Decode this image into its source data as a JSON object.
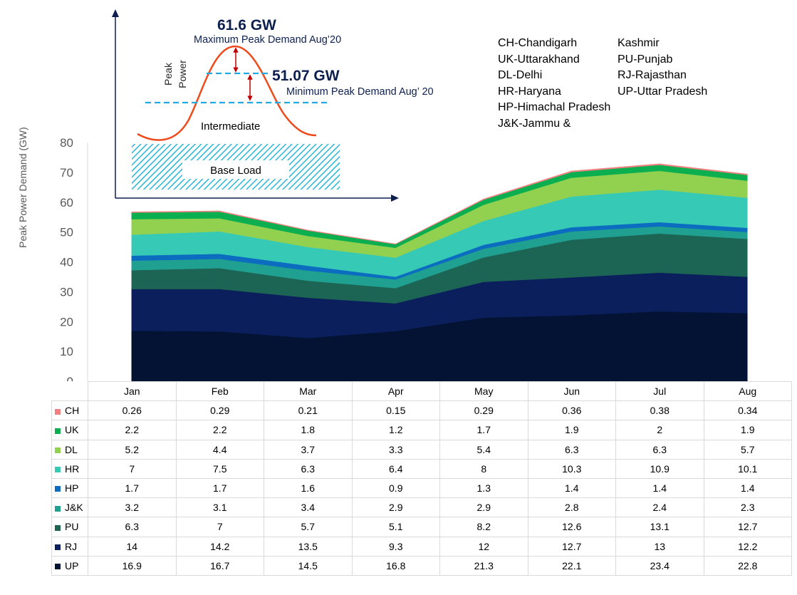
{
  "chart_data": {
    "type": "area",
    "stacked": true,
    "ylabel": "Peak Power Demand (GW)",
    "ylim": [
      0,
      80
    ],
    "yticks": [
      0,
      10,
      20,
      30,
      40,
      50,
      60,
      70,
      80
    ],
    "categories": [
      "Jan",
      "Feb",
      "Mar",
      "Apr",
      "May",
      "Jun",
      "Jul",
      "Aug"
    ],
    "series": [
      {
        "name": "UP",
        "color": "#041233",
        "values": [
          16.9,
          16.7,
          14.5,
          16.8,
          21.3,
          22.1,
          23.4,
          22.8
        ]
      },
      {
        "name": "RJ",
        "color": "#0a1f5c",
        "values": [
          14,
          14.2,
          13.5,
          9.3,
          12,
          12.7,
          13,
          12.2
        ]
      },
      {
        "name": "PU",
        "color": "#1c6454",
        "values": [
          6.3,
          7,
          5.7,
          5.1,
          8.2,
          12.6,
          13.1,
          12.7
        ]
      },
      {
        "name": "J&K",
        "color": "#20a090",
        "values": [
          3.2,
          3.1,
          3.4,
          2.9,
          2.9,
          2.8,
          2.4,
          2.3
        ]
      },
      {
        "name": "HP",
        "color": "#0b6cc0",
        "values": [
          1.7,
          1.7,
          1.6,
          0.9,
          1.3,
          1.4,
          1.4,
          1.4
        ]
      },
      {
        "name": "HR",
        "color": "#36c9b6",
        "values": [
          7,
          7.5,
          6.3,
          6.4,
          8,
          10.3,
          10.9,
          10.1
        ]
      },
      {
        "name": "DL",
        "color": "#92d050",
        "values": [
          5.2,
          4.4,
          3.7,
          3.3,
          5.4,
          6.3,
          6.3,
          5.7
        ]
      },
      {
        "name": "UK",
        "color": "#0caf50",
        "values": [
          2.2,
          2.2,
          1.8,
          1.2,
          1.7,
          1.9,
          2,
          1.9
        ]
      },
      {
        "name": "CH",
        "color": "#f08080",
        "values": [
          0.26,
          0.29,
          0.21,
          0.15,
          0.29,
          0.36,
          0.38,
          0.34
        ]
      }
    ],
    "table_row_order": [
      "CH",
      "UK",
      "DL",
      "HR",
      "HP",
      "J&K",
      "PU",
      "RJ",
      "UP"
    ]
  },
  "inset": {
    "max_value": "61.6 GW",
    "max_label": "Maximum Peak Demand Aug’20",
    "min_value": "51.07 GW",
    "min_label": "Minimum Peak Demand Aug’ 20",
    "axis_label_line1": "Peak",
    "axis_label_line2": "Power",
    "intermediate_label": "Intermediate",
    "base_label": "Base Load",
    "line_color": "#ee4b1c",
    "dash_color": "#21a9e1",
    "arrow_color": "#c00000",
    "axis_color": "#0d1f4f"
  },
  "abbreviations": {
    "col1": [
      "CH-Chandigarh",
      "UK-Uttarakhand",
      "DL-Delhi",
      "HR-Haryana",
      "HP-Himachal Pradesh",
      "J&K-Jammu &"
    ],
    "col2": [
      "Kashmir",
      "PU-Punjab",
      "RJ-Rajasthan",
      "UP-Uttar Pradesh"
    ]
  }
}
